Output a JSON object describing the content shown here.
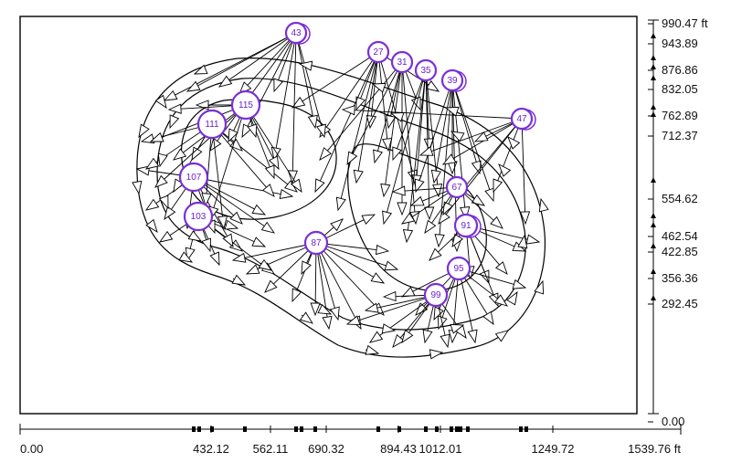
{
  "diagram": {
    "nodes": [
      {
        "id": "43",
        "kind": "fan"
      },
      {
        "id": "27",
        "kind": "fan"
      },
      {
        "id": "31",
        "kind": "fan"
      },
      {
        "id": "35",
        "kind": "fan"
      },
      {
        "id": "39",
        "kind": "fan"
      },
      {
        "id": "47",
        "kind": "fan"
      },
      {
        "id": "115",
        "kind": "fan"
      },
      {
        "id": "111",
        "kind": "fan"
      },
      {
        "id": "107",
        "kind": "fan"
      },
      {
        "id": "103",
        "kind": "fan"
      },
      {
        "id": "87",
        "kind": "fan"
      },
      {
        "id": "67",
        "kind": "fan"
      },
      {
        "id": "91",
        "kind": "fan"
      },
      {
        "id": "95",
        "kind": "fan"
      },
      {
        "id": "99",
        "kind": "fan"
      }
    ],
    "colors": {
      "node_ring": "#7a2fd6",
      "node_label": "#6b22c7",
      "lines": "#000000",
      "background": "#ffffff"
    }
  },
  "x_axis": {
    "unit": "ft",
    "labels": [
      "0.00",
      "432.12",
      "562.11",
      "690.32",
      "894.43",
      "1012.01",
      "1249.72",
      "1539.76 ft"
    ]
  },
  "y_axis": {
    "unit": "ft",
    "labels": [
      "990.47 ft",
      "943.89",
      "876.86",
      "832.05",
      "762.89",
      "712.37",
      "554.62",
      "462.54",
      "422.85",
      "356.36",
      "292.45",
      "0.00"
    ]
  }
}
